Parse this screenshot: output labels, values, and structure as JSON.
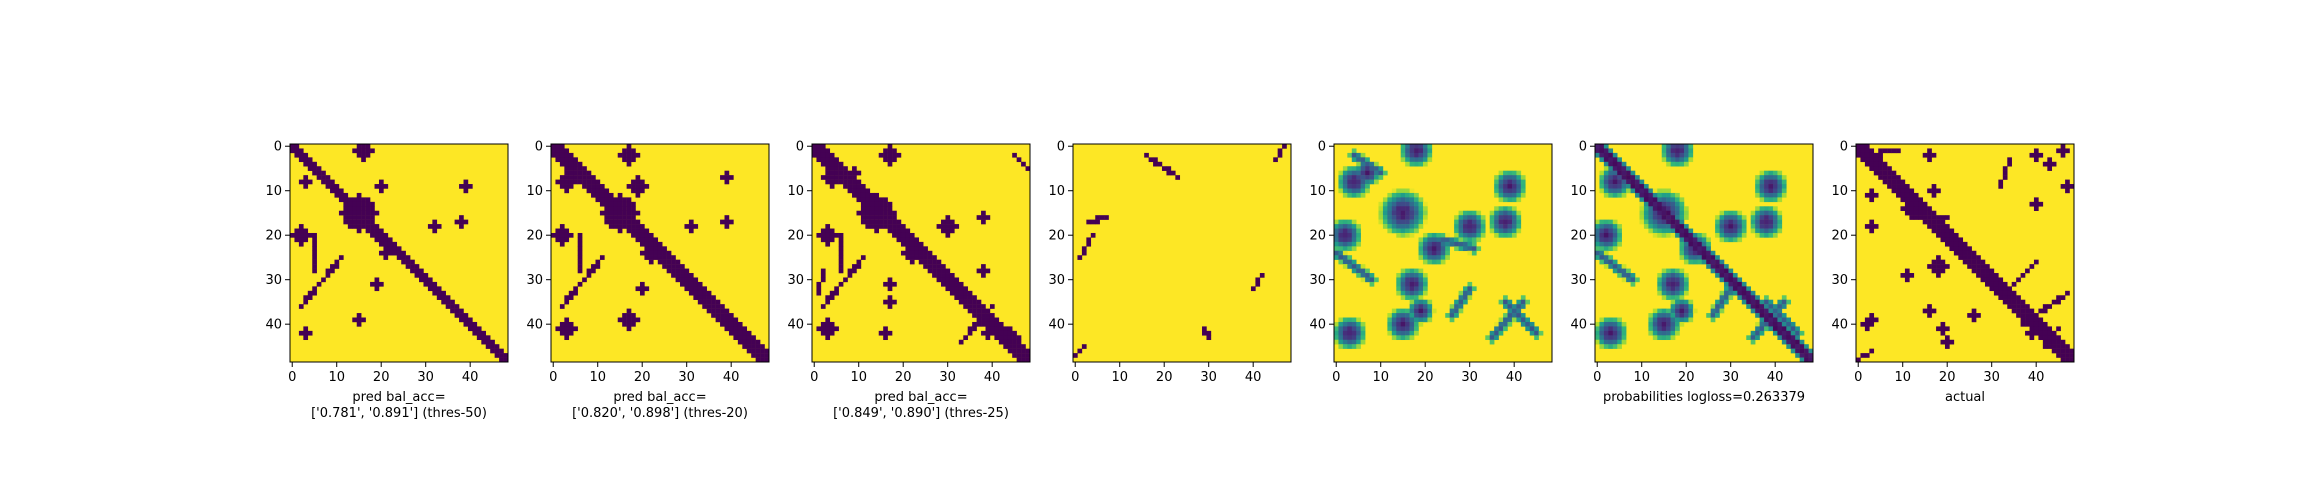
{
  "colors": {
    "low": "#440154",
    "high": "#fde725"
  },
  "chart_data": [
    {
      "type": "heatmap",
      "colormap": "viridis",
      "size": 49,
      "xticks": [
        0,
        10,
        20,
        30,
        40
      ],
      "yticks": [
        0,
        10,
        20,
        30,
        40
      ],
      "xlabel": [
        "pred bal_acc=",
        "['0.781', '0.891'] (thres-50)"
      ],
      "features": {
        "diagonal_width": 2,
        "blobs": [
          [
            3,
            8,
            1
          ],
          [
            16,
            1,
            2
          ],
          [
            2,
            20,
            2
          ],
          [
            15,
            15,
            4
          ],
          [
            20,
            9,
            1
          ],
          [
            21,
            24,
            1
          ],
          [
            19,
            31,
            1
          ],
          [
            3,
            42,
            1
          ],
          [
            15,
            39,
            1
          ],
          [
            32,
            18,
            1
          ],
          [
            39,
            9,
            1
          ],
          [
            38,
            17,
            1
          ]
        ],
        "lines": [
          [
            5,
            20,
            5,
            28
          ],
          [
            21,
            23,
            5,
            4
          ],
          [
            2,
            36,
            11,
            25
          ]
        ]
      }
    },
    {
      "type": "heatmap",
      "colormap": "viridis",
      "size": 49,
      "xticks": [
        0,
        10,
        20,
        30,
        40
      ],
      "yticks": [
        0,
        10,
        20,
        30,
        40
      ],
      "xlabel": [
        "pred bal_acc=",
        "['0.820', '0.898'] (thres-20)"
      ],
      "features": {
        "diagonal_width": 3,
        "blobs": [
          [
            3,
            8,
            2
          ],
          [
            17,
            2,
            2
          ],
          [
            2,
            20,
            2
          ],
          [
            15,
            15,
            4
          ],
          [
            19,
            9,
            2
          ],
          [
            22,
            24,
            2
          ],
          [
            20,
            32,
            1
          ],
          [
            3,
            41,
            2
          ],
          [
            17,
            39,
            2
          ],
          [
            31,
            18,
            1
          ],
          [
            39,
            7,
            1
          ],
          [
            39,
            17,
            1
          ]
        ],
        "lines": [
          [
            6,
            20,
            6,
            28
          ],
          [
            21,
            23,
            5,
            4
          ],
          [
            2,
            36,
            11,
            25
          ]
        ]
      }
    },
    {
      "type": "heatmap",
      "colormap": "viridis",
      "size": 49,
      "xticks": [
        0,
        10,
        20,
        30,
        40
      ],
      "yticks": [
        0,
        10,
        20,
        30,
        40
      ],
      "xlabel": [
        "pred bal_acc=",
        "['0.849', '0.890'] (thres-25)"
      ],
      "features": {
        "diagonal_width": 3,
        "blobs": [
          [
            4,
            7,
            2
          ],
          [
            17,
            2,
            2
          ],
          [
            3,
            20,
            2
          ],
          [
            14,
            15,
            4
          ],
          [
            9,
            6,
            1
          ],
          [
            22,
            24,
            2
          ],
          [
            17,
            31,
            1
          ],
          [
            17,
            35,
            1
          ],
          [
            3,
            41,
            2
          ],
          [
            16,
            42,
            1
          ],
          [
            30,
            18,
            2
          ],
          [
            38,
            16,
            1
          ],
          [
            38,
            28,
            1
          ],
          [
            39,
            42,
            1
          ]
        ],
        "lines": [
          [
            6,
            20,
            6,
            28
          ],
          [
            21,
            23,
            5,
            4
          ],
          [
            2,
            36,
            11,
            25
          ],
          [
            36,
            36,
            46,
            43
          ],
          [
            40,
            36,
            33,
            44
          ],
          [
            45,
            2,
            48,
            5
          ],
          [
            1,
            33,
            2,
            28
          ]
        ]
      }
    },
    {
      "type": "heatmap",
      "colormap": "viridis",
      "size": 49,
      "xticks": [
        0,
        10,
        20,
        30,
        40
      ],
      "yticks": [
        0,
        10,
        20,
        30,
        40
      ],
      "xlabel": [
        "",
        ""
      ],
      "features": {
        "diagonal_width": 0,
        "blobs": [],
        "lines": [
          [
            2,
            45,
            0,
            47
          ],
          [
            1,
            25,
            4,
            20
          ],
          [
            3,
            17,
            7,
            16
          ],
          [
            16,
            2,
            23,
            7
          ],
          [
            30,
            43,
            29,
            41
          ],
          [
            42,
            29,
            40,
            32
          ],
          [
            47,
            0,
            45,
            3
          ]
        ]
      }
    },
    {
      "type": "heatmap",
      "colormap": "viridis",
      "continuous": true,
      "size": 49,
      "xticks": [
        0,
        10,
        20,
        30,
        40
      ],
      "yticks": [
        0,
        10,
        20,
        30,
        40
      ],
      "xlabel": [
        "",
        ""
      ],
      "features": {
        "blobs": [
          [
            4,
            8,
            2.5
          ],
          [
            18,
            1,
            2.5
          ],
          [
            2,
            20,
            2.5
          ],
          [
            15,
            15,
            3.5
          ],
          [
            7,
            6,
            2
          ],
          [
            22,
            23,
            2.5
          ],
          [
            17,
            31,
            2.5
          ],
          [
            19,
            37,
            2
          ],
          [
            3,
            42,
            2.5
          ],
          [
            15,
            40,
            2.5
          ],
          [
            30,
            18,
            2.5
          ],
          [
            39,
            9,
            2.5
          ],
          [
            38,
            17,
            2.5
          ]
        ],
        "lines": [
          [
            0,
            24,
            8,
            30
          ],
          [
            26,
            38,
            30,
            32
          ],
          [
            24,
            21,
            31,
            23
          ],
          [
            38,
            35,
            45,
            42
          ],
          [
            42,
            35,
            35,
            43
          ],
          [
            4,
            2,
            10,
            6
          ]
        ]
      }
    },
    {
      "type": "heatmap",
      "colormap": "viridis",
      "continuous": true,
      "size": 49,
      "xticks": [
        0,
        10,
        20,
        30,
        40
      ],
      "yticks": [
        0,
        10,
        20,
        30,
        40
      ],
      "xlabel": [
        "probabilities logloss=0.263379",
        ""
      ],
      "features": {
        "diagonal_width": 2,
        "blobs": [
          [
            4,
            8,
            2.5
          ],
          [
            18,
            1,
            2.5
          ],
          [
            2,
            20,
            2.5
          ],
          [
            15,
            15,
            3.5
          ],
          [
            22,
            23,
            2.5
          ],
          [
            17,
            31,
            2.5
          ],
          [
            19,
            37,
            2
          ],
          [
            3,
            42,
            2.5
          ],
          [
            15,
            40,
            2.5
          ],
          [
            30,
            18,
            2.5
          ],
          [
            39,
            9,
            2.5
          ],
          [
            38,
            17,
            2.5
          ]
        ],
        "lines": [
          [
            0,
            24,
            8,
            30
          ],
          [
            26,
            38,
            30,
            32
          ],
          [
            38,
            35,
            45,
            42
          ],
          [
            42,
            35,
            35,
            43
          ]
        ]
      }
    },
    {
      "type": "heatmap",
      "colormap": "viridis",
      "size": 49,
      "xticks": [
        0,
        10,
        20,
        30,
        40
      ],
      "yticks": [
        0,
        10,
        20,
        30,
        40
      ],
      "xlabel": [
        "actual",
        ""
      ],
      "features": {
        "diagonal_width": 3,
        "blobs": [
          [
            1,
            1,
            1
          ],
          [
            3,
            11,
            1
          ],
          [
            3,
            18,
            1
          ],
          [
            16,
            2,
            1
          ],
          [
            17,
            10,
            1
          ],
          [
            18,
            27,
            2
          ],
          [
            11,
            29,
            1
          ],
          [
            3,
            39,
            1
          ],
          [
            2,
            40,
            1
          ],
          [
            16,
            37,
            1
          ],
          [
            19,
            41,
            1
          ],
          [
            20,
            44,
            1
          ],
          [
            26,
            38,
            1
          ],
          [
            37,
            37,
            2
          ],
          [
            39,
            42,
            1
          ],
          [
            43,
            4,
            1
          ],
          [
            46,
            1,
            1
          ],
          [
            47,
            9,
            1
          ],
          [
            40,
            13,
            1
          ],
          [
            40,
            2,
            1
          ],
          [
            12,
            14,
            2
          ]
        ],
        "lines": [
          [
            1,
            2,
            9,
            1
          ],
          [
            12,
            16,
            20,
            16
          ],
          [
            32,
            34,
            40,
            26
          ],
          [
            37,
            40,
            47,
            33
          ],
          [
            45,
            41,
            42,
            45
          ],
          [
            34,
            3,
            32,
            9
          ],
          [
            0,
            48,
            3,
            46
          ]
        ]
      }
    }
  ]
}
